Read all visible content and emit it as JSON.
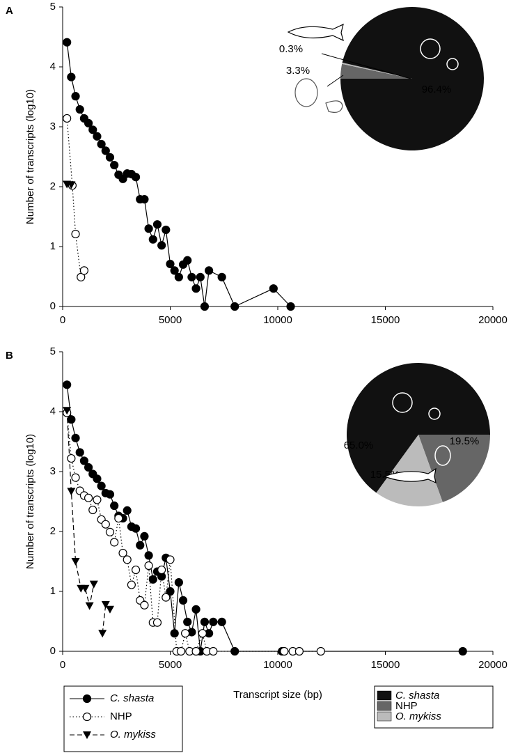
{
  "chart_data": [
    {
      "type": "line",
      "panel": "A",
      "ylabel": "Number of transcripts (log10)",
      "xlim": [
        0,
        20000
      ],
      "ylim": [
        0,
        5
      ],
      "xticks": [
        0,
        5000,
        10000,
        15000,
        20000
      ],
      "yticks": [
        0,
        1,
        2,
        3,
        4,
        5
      ],
      "series": [
        {
          "color": "#000000",
          "marker": "circle-filled",
          "dash": "solid",
          "x": [
            200,
            400,
            600,
            800,
            1000,
            1200,
            1400,
            1600,
            1800,
            2000,
            2200,
            2400,
            2600,
            2800,
            3000,
            3200,
            3400,
            3600,
            3800,
            4000,
            4200,
            4400,
            4600,
            4800,
            5000,
            5200,
            5400,
            5600,
            5800,
            6000,
            6200,
            6400,
            6600,
            6800,
            7400,
            8000,
            9800,
            10600
          ],
          "values": [
            4.41,
            3.83,
            3.51,
            3.29,
            3.14,
            3.06,
            2.95,
            2.84,
            2.71,
            2.6,
            2.49,
            2.36,
            2.2,
            2.13,
            2.22,
            2.21,
            2.16,
            1.79,
            1.79,
            1.3,
            1.12,
            1.37,
            1.02,
            1.28,
            0.71,
            0.6,
            0.49,
            0.7,
            0.77,
            0.49,
            0.3,
            0.49,
            0,
            0.6,
            0.49,
            0,
            0.3,
            0
          ]
        },
        {
          "color": "#000000",
          "marker": "circle-open",
          "dash": "dotted",
          "x": [
            200,
            450,
            600,
            850,
            1000
          ],
          "values": [
            3.14,
            2.02,
            1.21,
            0.49,
            0.6
          ]
        },
        {
          "color": "#000000",
          "marker": "triangle-down",
          "dash": "dashed",
          "x": [
            200,
            400
          ],
          "values": [
            2.04,
            2.03
          ]
        }
      ]
    },
    {
      "type": "pie",
      "values": [
        96.4,
        3.3,
        0.3
      ],
      "value_labels": [
        "96.4%",
        "3.3%",
        "0.3%"
      ],
      "colors": [
        "#111111",
        "#666666",
        "#bbbbbb"
      ]
    },
    {
      "type": "line",
      "panel": "B",
      "ylabel": "Number of transcripts (log10)",
      "xlabel": "Transcript size (bp)",
      "xlim": [
        0,
        20000
      ],
      "ylim": [
        0,
        5
      ],
      "xticks": [
        0,
        5000,
        10000,
        15000,
        20000
      ],
      "yticks": [
        0,
        1,
        2,
        3,
        4,
        5
      ],
      "series": [
        {
          "name": "C. shasta",
          "color": "#000000",
          "marker": "circle-filled",
          "dash": "solid",
          "x": [
            200,
            400,
            600,
            800,
            1000,
            1200,
            1400,
            1600,
            1800,
            2000,
            2200,
            2400,
            2600,
            2800,
            3000,
            3200,
            3400,
            3600,
            3800,
            4000,
            4200,
            4400,
            4600,
            4800,
            5000,
            5200,
            5400,
            5600,
            5800,
            6000,
            6200,
            6400,
            6600,
            6800,
            7000,
            7400,
            8000,
            10200,
            18600
          ],
          "values": [
            4.45,
            3.87,
            3.56,
            3.32,
            3.18,
            3.07,
            2.96,
            2.88,
            2.76,
            2.64,
            2.62,
            2.43,
            2.26,
            2.22,
            2.35,
            2.08,
            2.05,
            1.77,
            1.92,
            1.6,
            1.2,
            1.33,
            1.25,
            1.56,
            1.0,
            0.3,
            1.15,
            0.85,
            0.49,
            0.32,
            0.7,
            0,
            0.49,
            0.3,
            0.49,
            0.49,
            0,
            0,
            0
          ]
        },
        {
          "name": "NHP",
          "color": "#000000",
          "marker": "circle-open",
          "dash": "dotted",
          "x": [
            200,
            400,
            600,
            800,
            1000,
            1200,
            1400,
            1600,
            1800,
            2000,
            2200,
            2400,
            2600,
            2800,
            3000,
            3200,
            3400,
            3600,
            3800,
            4000,
            4200,
            4400,
            4600,
            4800,
            5000,
            5300,
            5500,
            5700,
            5900,
            6200,
            6500,
            6700,
            7000,
            10300,
            10700,
            11000,
            12000
          ],
          "values": [
            3.98,
            3.22,
            2.9,
            2.68,
            2.6,
            2.56,
            2.36,
            2.53,
            2.2,
            2.12,
            1.99,
            1.82,
            2.22,
            1.64,
            1.53,
            1.11,
            1.36,
            0.85,
            0.77,
            1.43,
            0.48,
            0.48,
            1.36,
            0.9,
            1.53,
            0,
            0,
            0.3,
            0,
            0,
            0.3,
            0,
            0,
            0,
            0,
            0,
            0
          ]
        },
        {
          "name": "O. mykiss",
          "color": "#000000",
          "marker": "triangle-down",
          "dash": "dashed",
          "x": [
            200,
            400,
            600,
            850,
            1050,
            1250,
            1450,
            1650,
            1850,
            2000,
            2200
          ],
          "values": [
            4.02,
            2.67,
            1.5,
            1.05,
            1.05,
            0.76,
            1.12,
            null,
            0.3,
            0.78,
            0.7
          ]
        }
      ]
    },
    {
      "type": "pie",
      "categories": [
        "C. shasta",
        "NHP",
        "O. mykiss"
      ],
      "values": [
        65.0,
        19.5,
        15.5
      ],
      "value_labels": [
        "65.0%",
        "19.5%",
        "15.5%"
      ],
      "colors": [
        "#111111",
        "#666666",
        "#bbbbbb"
      ]
    }
  ]
}
